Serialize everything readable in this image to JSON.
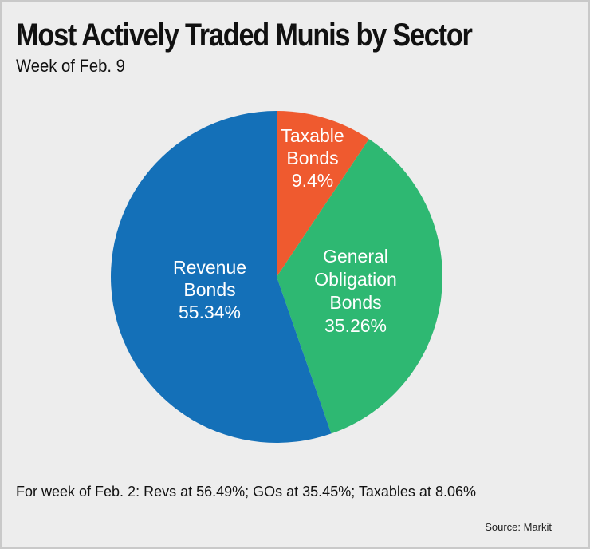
{
  "header": {
    "title": "Most Actively Traded Munis by Sector",
    "subtitle": "Week of Feb. 9"
  },
  "chart_data": {
    "type": "pie",
    "title": "Most Actively Traded Munis by Sector",
    "subtitle": "Week of Feb. 9",
    "slices": [
      {
        "name": "Taxable Bonds",
        "label_lines": [
          "Taxable",
          "Bonds"
        ],
        "value": 9.4,
        "value_label": "9.4%",
        "color": "#ef5a2f"
      },
      {
        "name": "General Obligation Bonds",
        "label_lines": [
          "General",
          "Obligation",
          "Bonds"
        ],
        "value": 35.26,
        "value_label": "35.26%",
        "color": "#2eb872"
      },
      {
        "name": "Revenue Bonds",
        "label_lines": [
          "Revenue",
          "Bonds"
        ],
        "value": 55.34,
        "value_label": "55.34%",
        "color": "#1470b8"
      }
    ],
    "start_angle": "12 o'clock, clockwise"
  },
  "footer": {
    "note": "For week of Feb. 2: Revs at 56.49%; GOs at 35.45%; Taxables at 8.06%",
    "source": "Source: Markit"
  }
}
